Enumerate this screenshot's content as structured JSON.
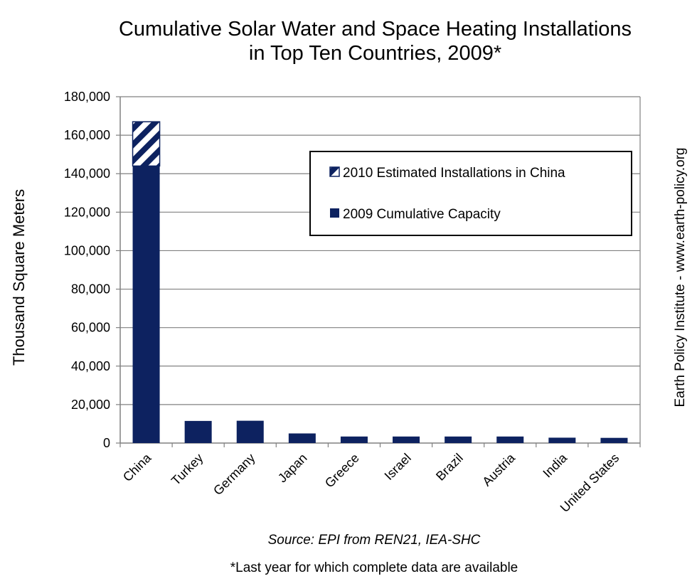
{
  "title_line1": "Cumulative Solar Water and Space Heating Installations",
  "title_line2": "in Top Ten Countries, 2009*",
  "source": "Source: EPI from REN21, IEA-SHC",
  "footnote": "*Last year for which complete data are available",
  "credit": "Earth Policy Institute - www.earth-policy.org",
  "colors": {
    "bar": "#0d2260",
    "stripe_bg": "#ffffff",
    "grid": "#808080"
  },
  "chart_data": {
    "type": "bar",
    "stacked": true,
    "ylabel": "Thousand Square Meters",
    "xlabel": "",
    "ylim": [
      0,
      180000
    ],
    "yticks": [
      0,
      20000,
      40000,
      60000,
      80000,
      100000,
      120000,
      140000,
      160000,
      180000
    ],
    "ytick_labels": [
      "0",
      "20,000",
      "40,000",
      "60,000",
      "80,000",
      "100,000",
      "120,000",
      "140,000",
      "160,000",
      "180,000"
    ],
    "grid": true,
    "legend_position": "top-right",
    "categories": [
      "China",
      "Turkey",
      "Germany",
      "Japan",
      "Greece",
      "Israel",
      "Brazil",
      "Austria",
      "India",
      "United States"
    ],
    "series": [
      {
        "name": "2009 Cumulative Capacity",
        "pattern": "solid",
        "values": [
          144000,
          11500,
          11600,
          5000,
          3400,
          3400,
          3400,
          3400,
          2800,
          2700
        ]
      },
      {
        "name": "2010 Estimated Installations in China",
        "pattern": "hatched",
        "values": [
          23000,
          0,
          0,
          0,
          0,
          0,
          0,
          0,
          0,
          0
        ]
      }
    ]
  }
}
